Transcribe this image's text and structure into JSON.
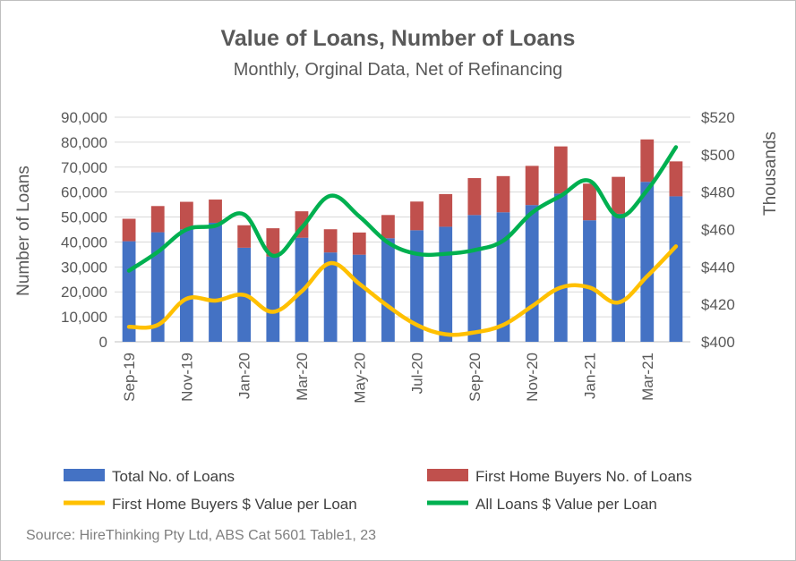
{
  "chart_data": {
    "type": "bar",
    "title": "Value of Loans, Number of Loans",
    "subtitle": "Monthly, Orginal Data, Net of Refinancing",
    "ylabel": "Number of Loans",
    "y2label": "Thousands",
    "ylim": [
      0,
      90000
    ],
    "y2lim": [
      400,
      520
    ],
    "yticks": [
      "0",
      "10,000",
      "20,000",
      "30,000",
      "40,000",
      "50,000",
      "60,000",
      "70,000",
      "80,000",
      "90,000"
    ],
    "y2ticks": [
      "$400",
      "$420",
      "$440",
      "$460",
      "$480",
      "$500",
      "$520"
    ],
    "categories": [
      "Sep-19",
      "Oct-19",
      "Nov-19",
      "Dec-19",
      "Jan-20",
      "Feb-20",
      "Mar-20",
      "Apr-20",
      "May-20",
      "Jun-20",
      "Jul-20",
      "Aug-20",
      "Sep-20",
      "Oct-20",
      "Nov-20",
      "Dec-20",
      "Jan-21",
      "Feb-21",
      "Mar-21",
      "Apr-21"
    ],
    "category_tick_labels": [
      "Sep-19",
      "",
      "Nov-19",
      "",
      "Jan-20",
      "",
      "Mar-20",
      "",
      "May-20",
      "",
      "Jul-20",
      "",
      "Sep-20",
      "",
      "Nov-20",
      "",
      "Jan-21",
      "",
      "Mar-21",
      ""
    ],
    "grid": true,
    "legend_position": "bottom",
    "series": [
      {
        "name": "Total No. of Loans",
        "kind": "bar",
        "color": "#4472c4",
        "axis": "left",
        "values": [
          40300,
          43900,
          45100,
          47700,
          37700,
          34200,
          41700,
          35800,
          34900,
          41500,
          44700,
          46100,
          50800,
          51900,
          54800,
          59400,
          48700,
          51300,
          64100,
          58300
        ]
      },
      {
        "name": "First Home Buyers No. of Loans",
        "kind": "bar-stacked",
        "color": "#c0504d",
        "axis": "left",
        "values": [
          9000,
          10500,
          11000,
          9300,
          9000,
          11300,
          10600,
          9300,
          8900,
          9300,
          11500,
          13100,
          14800,
          14500,
          15700,
          18900,
          14700,
          14800,
          17000,
          14000
        ]
      },
      {
        "name": "First Home Buyers $ Value per Loan",
        "kind": "line",
        "color": "#ffc000",
        "axis": "right",
        "values": [
          408,
          409,
          423,
          422,
          425,
          416,
          427,
          442,
          431,
          419,
          409,
          404,
          405,
          409,
          419,
          429,
          429,
          421,
          435,
          451
        ]
      },
      {
        "name": "All Loans $ Value per Loan",
        "kind": "line",
        "color": "#00b050",
        "axis": "right",
        "values": [
          438,
          448,
          460,
          462,
          468,
          446,
          461,
          478,
          467,
          453,
          447,
          447,
          449,
          454,
          469,
          478,
          486,
          467,
          481,
          504
        ]
      }
    ],
    "source": "Source: HireThinking Pty Ltd, ABS Cat 5601 Table1, 23"
  }
}
